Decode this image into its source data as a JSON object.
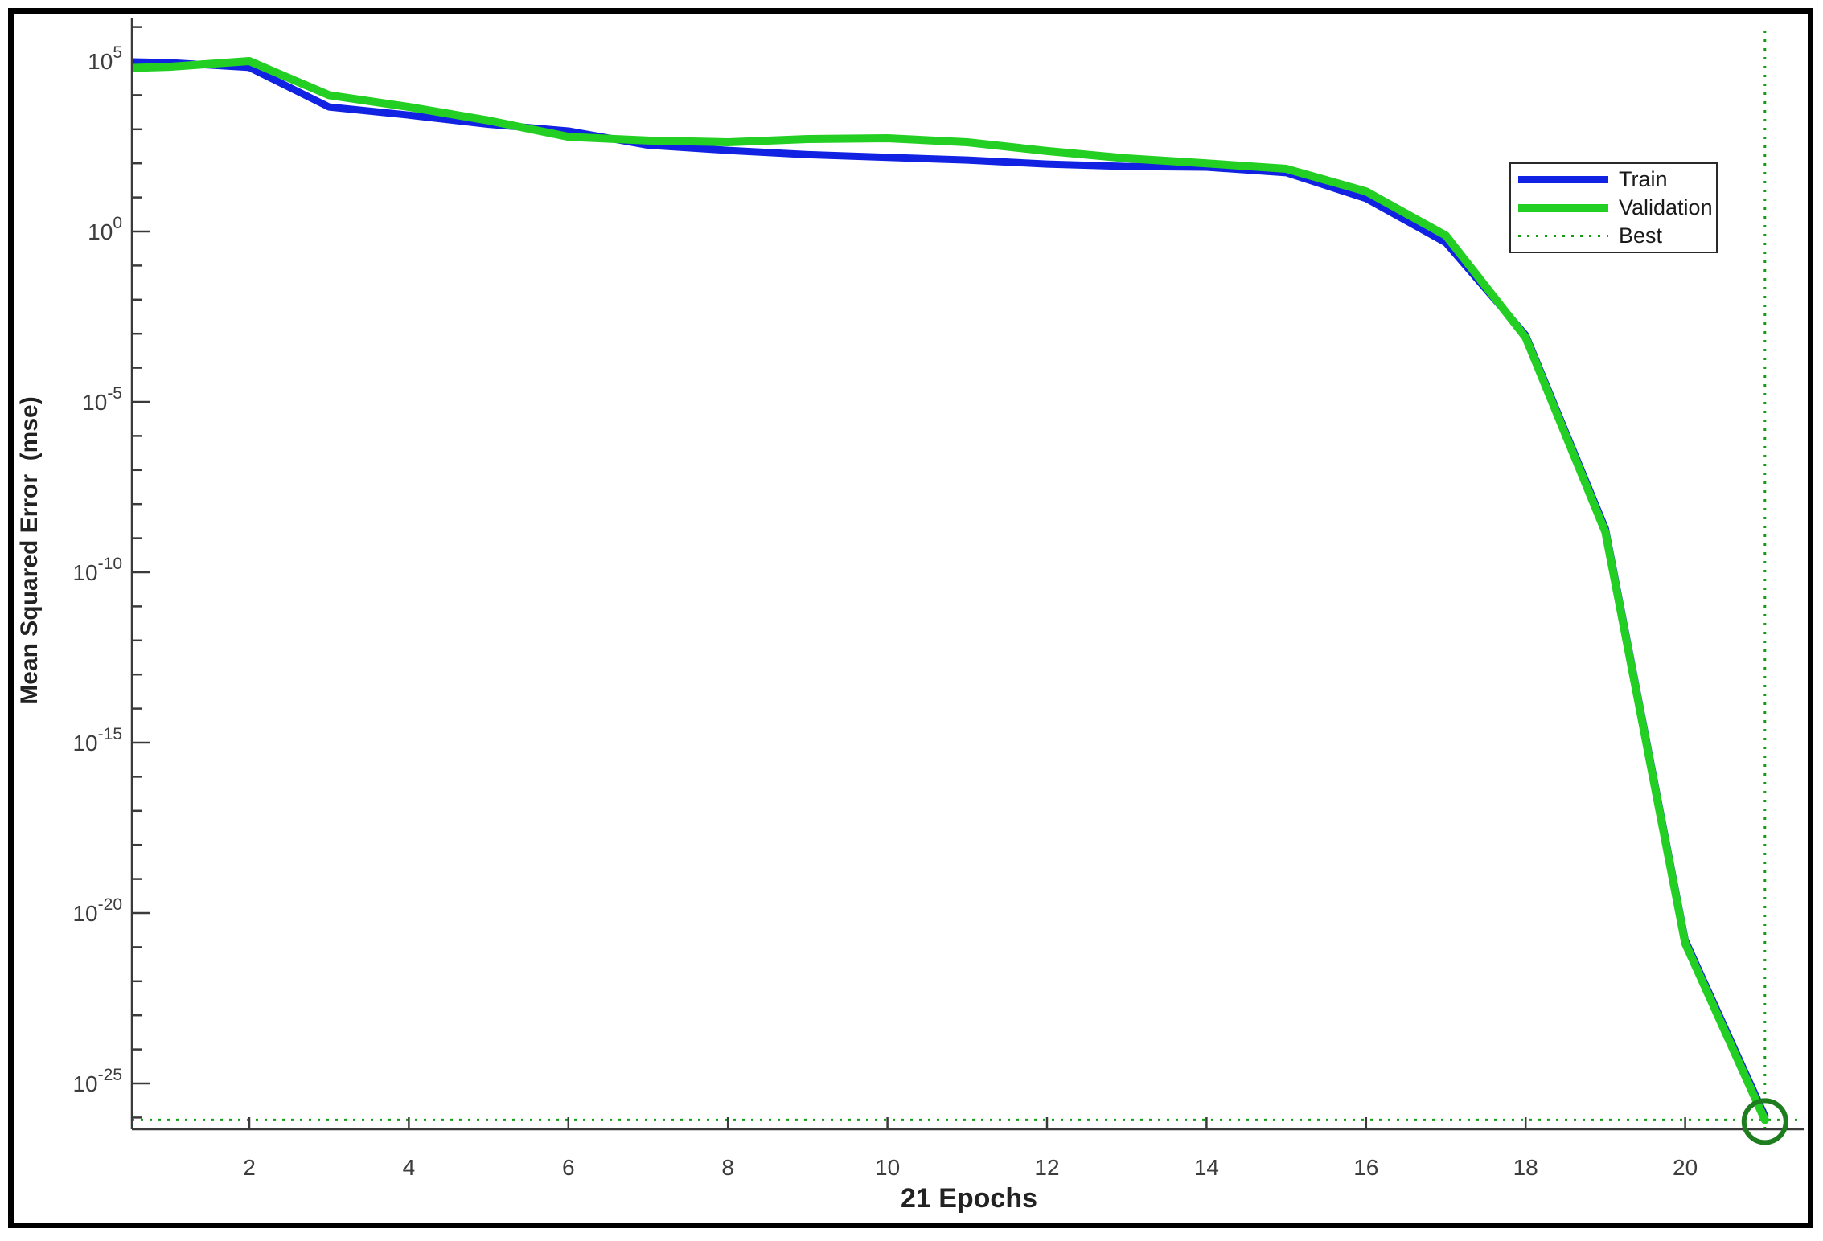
{
  "figure": {
    "background": "#ffffff",
    "border_color": "#000000"
  },
  "chart_data": {
    "type": "line",
    "title": "",
    "xlabel": "21 Epochs",
    "ylabel": "Mean Squared Error  (mse)",
    "x_axis": {
      "ticks": [
        2,
        4,
        6,
        8,
        10,
        12,
        14,
        16,
        18,
        20
      ],
      "lim": [
        0.53,
        21.5
      ]
    },
    "y_axis": {
      "scale": "log",
      "labeled_exponents": [
        5,
        0,
        -5,
        -10,
        -15,
        -20,
        -25
      ],
      "minor_tick_exponent_range": [
        6,
        -26
      ],
      "lim_exponents": [
        6.3,
        -26.4
      ]
    },
    "grid": false,
    "legend_position": "upper-right",
    "epochs": [
      0,
      1,
      2,
      3,
      4,
      5,
      6,
      7,
      8,
      9,
      10,
      11,
      12,
      13,
      14,
      15,
      16,
      17,
      18,
      19,
      20,
      21
    ],
    "series": [
      {
        "name": "Train",
        "color": "#1122e2",
        "stroke_width": 9,
        "values": [
          100000,
          90000,
          65000,
          4500,
          2600,
          1400,
          890,
          340,
          240,
          180,
          150,
          125,
          95,
          81,
          77,
          53,
          9.3,
          0.47,
          0.00091,
          1.9e-09,
          1.6e-21,
          1.1e-26
        ]
      },
      {
        "name": "Validation",
        "color": "#22cf22",
        "stroke_width": 10,
        "values": [
          58000,
          68000,
          100000,
          10000,
          4500,
          1800,
          600,
          465,
          415,
          515,
          545,
          415,
          230,
          140,
          100,
          69,
          15,
          0.76,
          0.00078,
          1.5e-09,
          1.3e-21,
          8.5e-27
        ]
      }
    ],
    "best": {
      "label": "Best",
      "epoch": 21,
      "value": 8.5e-27,
      "line_color": "#129e12",
      "marker_color": "#1e7d1e"
    },
    "axis_color": "#3a3a3a",
    "tick_label_color": "#3d3d3d"
  },
  "legend": {
    "items": [
      {
        "label": "Train"
      },
      {
        "label": "Validation"
      },
      {
        "label": "Best"
      }
    ]
  }
}
